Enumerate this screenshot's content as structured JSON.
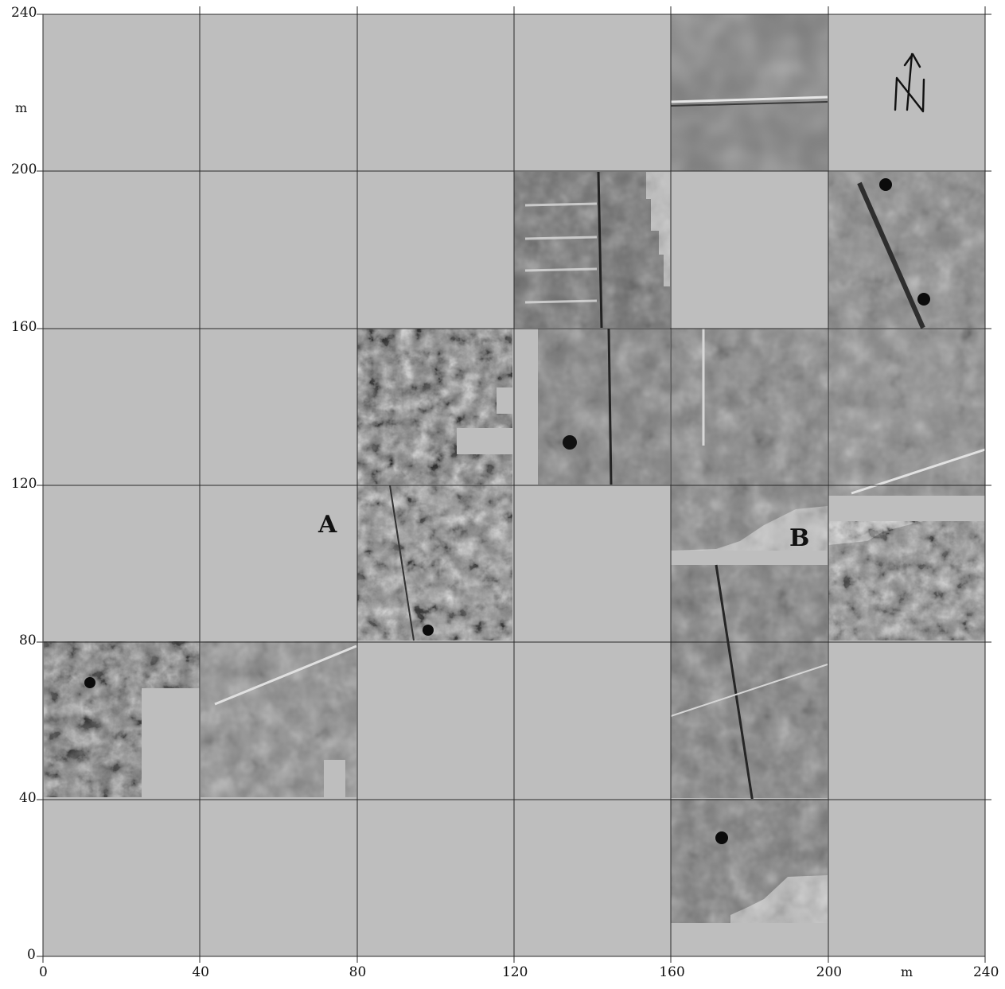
{
  "map": {
    "x_axis": {
      "ticks": [
        "0",
        "40",
        "80",
        "120",
        "160",
        "200",
        "240"
      ],
      "unit": "m"
    },
    "y_axis": {
      "ticks": [
        "0",
        "40",
        "80",
        "120",
        "160",
        "200",
        "240"
      ],
      "unit": "m"
    },
    "area_labels": {
      "a": "A",
      "b": "B"
    },
    "north_arrow_icon": "north-arrow-icon",
    "colors": {
      "background": "#bebebe",
      "grid": "#2a2a2a",
      "survey_mid": "#8c8c8c"
    }
  }
}
